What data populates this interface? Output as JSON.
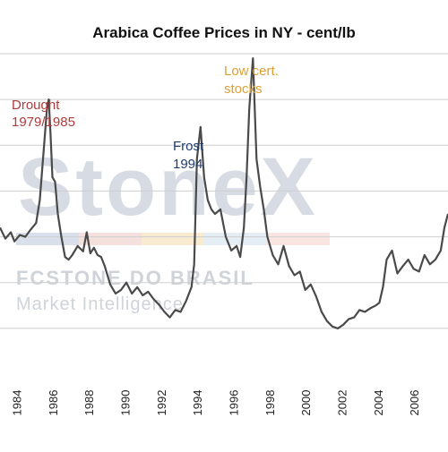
{
  "colors": {
    "background": "#ffffff",
    "series": "#4a4a4a",
    "grid": "#cfcfcf",
    "axis_text": "#222222",
    "title": "#111111",
    "drought": "#b23a3a",
    "frost": "#1f3b6e",
    "stocks": "#e0a030",
    "watermark": "#d7dbe3",
    "watermark_text": "#cfd3da",
    "strip_colors": [
      "#cfd8e6",
      "#f1d9d6",
      "#f6e6c7",
      "#dfe8f3",
      "#f6ded9"
    ]
  },
  "chart_data": {
    "type": "line",
    "title": "Arabica Coffee Prices in NY - cent/lb",
    "xlabel": "",
    "ylabel": "",
    "x_tick_labels": [
      "1984",
      "1986",
      "1988",
      "1990",
      "1992",
      "1994",
      "1996",
      "1998",
      "2000",
      "2002",
      "2004",
      "2006"
    ],
    "xlim": [
      1983.2,
      2008.0
    ],
    "ylim": [
      0,
      350
    ],
    "grid": true,
    "series": [
      {
        "x": [
          1983.2,
          1983.5,
          1983.8,
          1984.0,
          1984.3,
          1984.6,
          1984.9,
          1985.2,
          1985.4,
          1985.6,
          1985.8,
          1985.9,
          1986.0,
          1986.1,
          1986.25,
          1986.4,
          1986.6,
          1986.8,
          1987.0,
          1987.2,
          1987.5,
          1987.8,
          1988.0,
          1988.2,
          1988.4,
          1988.6,
          1988.8,
          1989.0,
          1989.3,
          1989.6,
          1989.9,
          1990.2,
          1990.5,
          1990.8,
          1991.1,
          1991.4,
          1991.7,
          1992.0,
          1992.3,
          1992.6,
          1992.9,
          1993.2,
          1993.5,
          1993.8,
          1993.95,
          1994.1,
          1994.3,
          1994.5,
          1994.7,
          1994.9,
          1995.1,
          1995.4,
          1995.7,
          1996.0,
          1996.3,
          1996.5,
          1996.7,
          1996.85,
          1997.0,
          1997.2,
          1997.4,
          1997.6,
          1997.8,
          1998.0,
          1998.3,
          1998.6,
          1998.9,
          1999.2,
          1999.5,
          1999.8,
          2000.1,
          2000.4,
          2000.7,
          2001.0,
          2001.3,
          2001.6,
          2001.9,
          2002.2,
          2002.5,
          2002.8,
          2003.1,
          2003.4,
          2003.7,
          2004.0,
          2004.2,
          2004.4,
          2004.6,
          2004.9,
          2005.2,
          2005.5,
          2005.8,
          2006.1,
          2006.4,
          2006.7,
          2007.0,
          2007.3,
          2007.6,
          2007.8,
          2008.0
        ],
        "y": [
          160,
          148,
          155,
          145,
          152,
          150,
          158,
          165,
          190,
          240,
          290,
          300,
          260,
          215,
          210,
          175,
          150,
          128,
          125,
          130,
          140,
          134,
          155,
          132,
          138,
          130,
          128,
          118,
          98,
          88,
          92,
          100,
          88,
          95,
          86,
          90,
          82,
          76,
          68,
          62,
          70,
          68,
          80,
          95,
          120,
          235,
          270,
          215,
          190,
          180,
          175,
          180,
          150,
          135,
          140,
          128,
          160,
          215,
          290,
          345,
          235,
          205,
          180,
          150,
          130,
          120,
          140,
          118,
          108,
          112,
          92,
          98,
          85,
          68,
          58,
          52,
          50,
          54,
          60,
          62,
          70,
          68,
          72,
          75,
          78,
          95,
          125,
          135,
          110,
          118,
          125,
          115,
          112,
          130,
          120,
          125,
          135,
          160,
          175
        ]
      }
    ],
    "annotations": [
      {
        "text_lines": [
          "Drought",
          "1979/1985"
        ],
        "near_x": 1984.5
      },
      {
        "text_lines": [
          "Frost",
          "1994"
        ],
        "near_x": 1994.0
      },
      {
        "text_lines": [
          "Low cert.",
          "stocks"
        ],
        "near_x": 1997.0
      }
    ]
  },
  "watermark": {
    "brand": "StoneX",
    "line1": "FCSTONE DO BRASIL",
    "line2": "Market Intelligence"
  }
}
